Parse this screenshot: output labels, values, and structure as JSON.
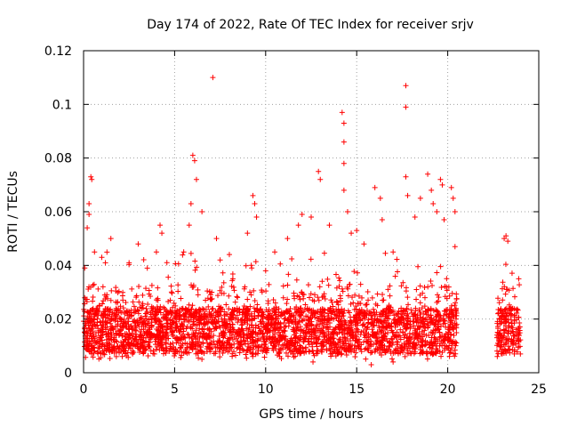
{
  "chart_data": {
    "type": "scatter",
    "title": "Day 174 of 2022, Rate Of TEC Index for receiver srjv",
    "xlabel": "GPS time / hours",
    "ylabel": "ROTI / TECUs",
    "xlim": [
      0,
      25
    ],
    "ylim": [
      0,
      0.12
    ],
    "xticks": [
      "0",
      "5",
      "10",
      "15",
      "20",
      "25"
    ],
    "yticks": [
      "0",
      "0.02",
      "0.04",
      "0.06",
      "0.08",
      "0.1",
      "0.12"
    ],
    "grid": true,
    "marker": "+",
    "color": "#ff0000",
    "coverage_hours": [
      [
        0,
        20.5
      ],
      [
        22.7,
        24
      ]
    ],
    "series": [
      {
        "name": "",
        "points": [
          [
            0.3,
            0.059
          ],
          [
            0.4,
            0.073
          ],
          [
            0.45,
            0.072
          ],
          [
            0.3,
            0.063
          ],
          [
            0.2,
            0.054
          ],
          [
            0.6,
            0.045
          ],
          [
            1.0,
            0.043
          ],
          [
            1.2,
            0.041
          ],
          [
            1.5,
            0.05
          ],
          [
            2.5,
            0.041
          ],
          [
            3.0,
            0.048
          ],
          [
            3.5,
            0.039
          ],
          [
            4.0,
            0.045
          ],
          [
            4.2,
            0.055
          ],
          [
            4.3,
            0.052
          ],
          [
            5.5,
            0.045
          ],
          [
            5.8,
            0.055
          ],
          [
            5.9,
            0.063
          ],
          [
            6.0,
            0.081
          ],
          [
            6.1,
            0.079
          ],
          [
            6.2,
            0.072
          ],
          [
            6.5,
            0.06
          ],
          [
            7.1,
            0.11
          ],
          [
            7.3,
            0.05
          ],
          [
            7.5,
            0.042
          ],
          [
            8.2,
            0.035
          ],
          [
            9.0,
            0.052
          ],
          [
            9.3,
            0.066
          ],
          [
            9.4,
            0.063
          ],
          [
            9.5,
            0.058
          ],
          [
            10.0,
            0.038
          ],
          [
            10.5,
            0.045
          ],
          [
            11.2,
            0.05
          ],
          [
            11.8,
            0.055
          ],
          [
            12.0,
            0.059
          ],
          [
            12.5,
            0.058
          ],
          [
            12.9,
            0.075
          ],
          [
            13.0,
            0.072
          ],
          [
            13.5,
            0.055
          ],
          [
            14.2,
            0.097
          ],
          [
            14.3,
            0.093
          ],
          [
            14.3,
            0.086
          ],
          [
            14.3,
            0.078
          ],
          [
            14.3,
            0.068
          ],
          [
            14.5,
            0.06
          ],
          [
            14.7,
            0.052
          ],
          [
            15.0,
            0.053
          ],
          [
            15.4,
            0.048
          ],
          [
            16.0,
            0.069
          ],
          [
            16.3,
            0.065
          ],
          [
            16.4,
            0.057
          ],
          [
            17.0,
            0.045
          ],
          [
            17.7,
            0.107
          ],
          [
            17.7,
            0.099
          ],
          [
            17.7,
            0.073
          ],
          [
            17.8,
            0.066
          ],
          [
            18.2,
            0.058
          ],
          [
            18.5,
            0.065
          ],
          [
            18.9,
            0.074
          ],
          [
            19.1,
            0.068
          ],
          [
            19.2,
            0.063
          ],
          [
            19.4,
            0.06
          ],
          [
            19.6,
            0.072
          ],
          [
            19.7,
            0.07
          ],
          [
            19.8,
            0.057
          ],
          [
            20.2,
            0.069
          ],
          [
            20.3,
            0.065
          ],
          [
            20.4,
            0.06
          ],
          [
            20.4,
            0.047
          ],
          [
            23.1,
            0.05
          ],
          [
            23.2,
            0.051
          ],
          [
            23.3,
            0.049
          ],
          [
            23.9,
            0.035
          ],
          [
            1.8,
            0.006
          ],
          [
            6.5,
            0.005
          ],
          [
            12.6,
            0.004
          ],
          [
            15.8,
            0.003
          ],
          [
            17.0,
            0.004
          ]
        ]
      }
    ]
  }
}
